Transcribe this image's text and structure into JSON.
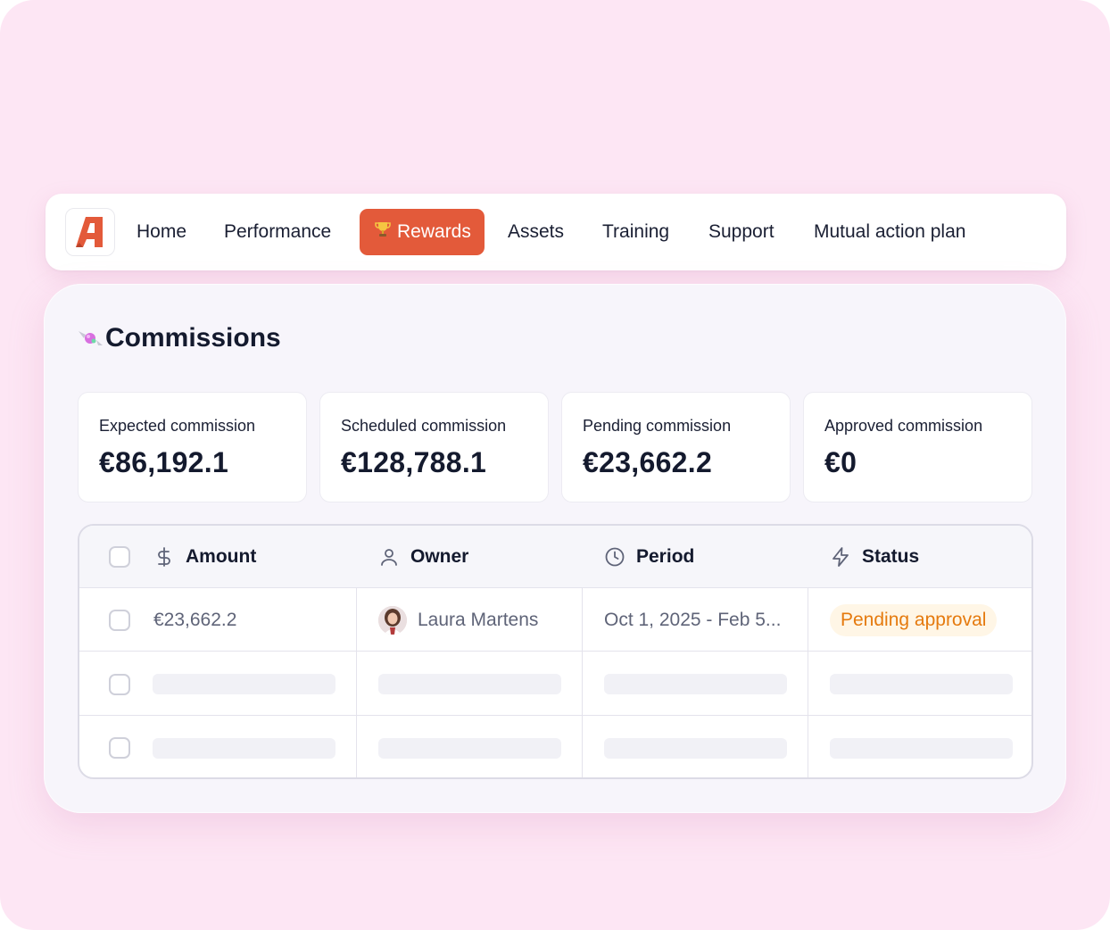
{
  "nav": {
    "items": [
      "Home",
      "Performance",
      "Rewards",
      "Assets",
      "Training",
      "Support",
      "Mutual action plan"
    ],
    "active_index": 2,
    "active_icon": "trophy-icon"
  },
  "commissions": {
    "title": "Commissions",
    "cards": [
      {
        "label": "Expected commission",
        "value": "€86,192.1"
      },
      {
        "label": "Scheduled commission",
        "value": "€128,788.1"
      },
      {
        "label": "Pending commission",
        "value": "€23,662.2"
      },
      {
        "label": "Approved commission",
        "value": "€0"
      }
    ]
  },
  "table": {
    "columns": [
      {
        "label": "Amount",
        "icon": "dollar-icon"
      },
      {
        "label": "Owner",
        "icon": "user-icon"
      },
      {
        "label": "Period",
        "icon": "clock-icon"
      },
      {
        "label": "Status",
        "icon": "bolt-icon"
      }
    ],
    "rows": [
      {
        "amount": "€23,662.2",
        "owner": "Laura Martens",
        "period": "Oct 1, 2025 - Feb 5...",
        "status": "Pending approval"
      }
    ]
  },
  "colors": {
    "background": "#fde6f4",
    "accent": "#e35a3a",
    "status_pending": "#e57a0e"
  }
}
